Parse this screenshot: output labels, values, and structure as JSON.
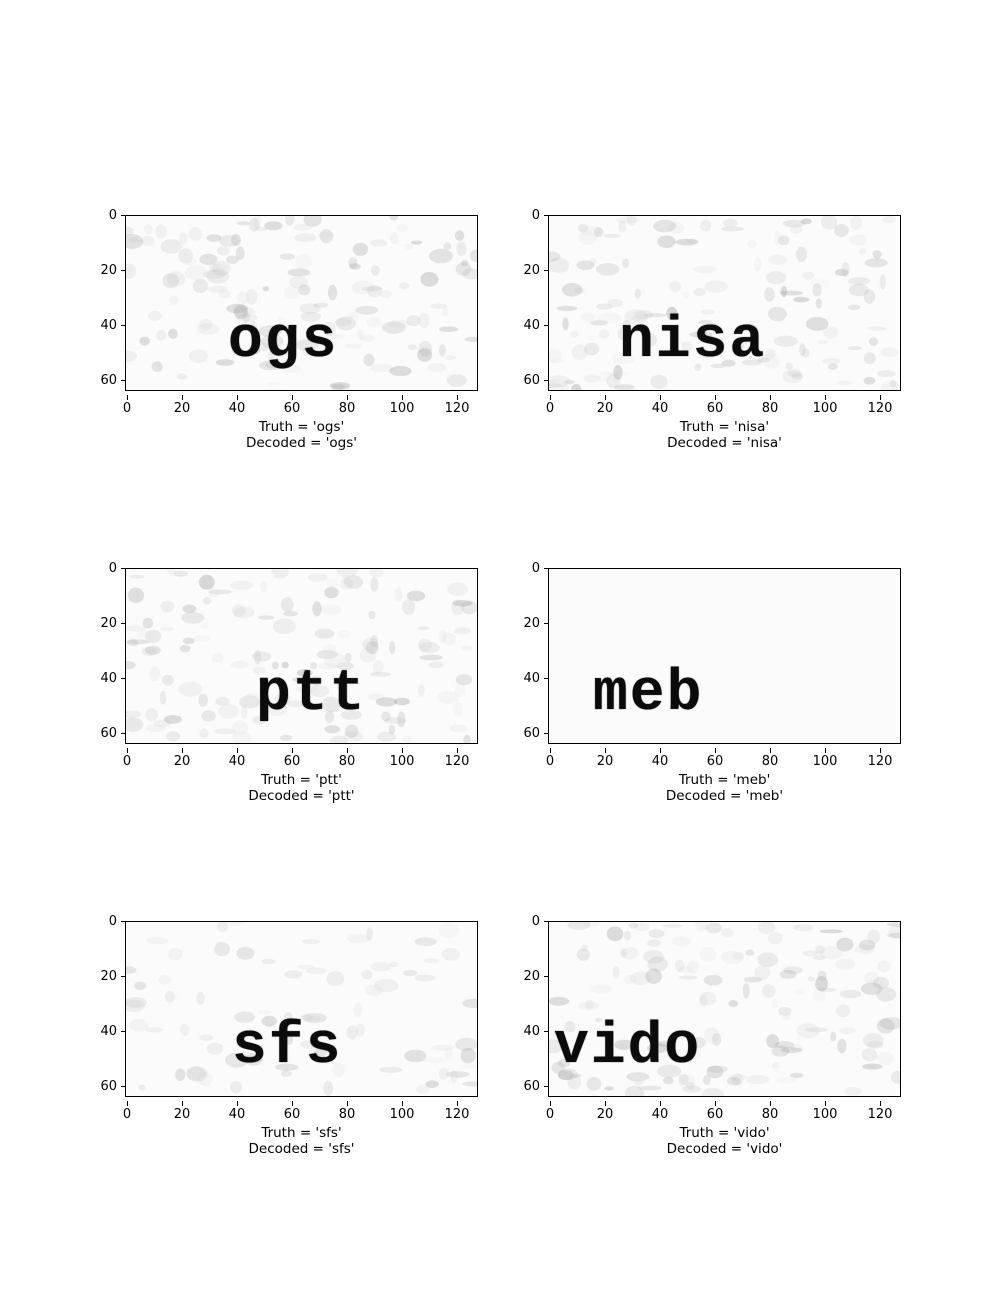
{
  "axis": {
    "y_ticks": [
      "0",
      "20",
      "40",
      "60"
    ],
    "x_ticks": [
      "0",
      "20",
      "40",
      "60",
      "80",
      "100",
      "120"
    ]
  },
  "panels": [
    {
      "word": "ogs",
      "truth": "Truth = 'ogs'",
      "decoded": "Decoded = 'ogs'",
      "noise": "heavy"
    },
    {
      "word": "nisa",
      "truth": "Truth = 'nisa'",
      "decoded": "Decoded = 'nisa'",
      "noise": "heavy"
    },
    {
      "word": "ptt",
      "truth": "Truth = 'ptt'",
      "decoded": "Decoded = 'ptt'",
      "noise": "heavy"
    },
    {
      "word": "meb",
      "truth": "Truth = 'meb'",
      "decoded": "Decoded = 'meb'",
      "noise": "none"
    },
    {
      "word": "sfs",
      "truth": "Truth = 'sfs'",
      "decoded": "Decoded = 'sfs'",
      "noise": "light"
    },
    {
      "word": "vido",
      "truth": "Truth = 'vido'",
      "decoded": "Decoded = 'vido'",
      "noise": "heavy"
    }
  ]
}
